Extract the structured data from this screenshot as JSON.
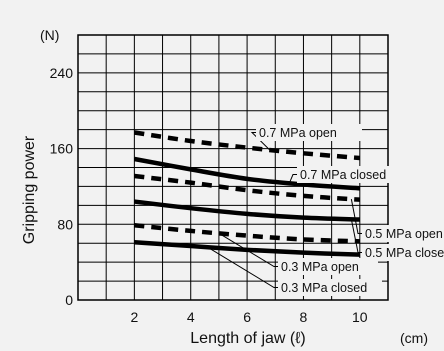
{
  "chart_data": {
    "type": "line",
    "xlabel": "Length of jaw (ℓ)",
    "xunit": "(cm)",
    "ylabel": "Gripping power",
    "yunit": "(N)",
    "xlim": [
      0,
      11
    ],
    "ylim": [
      0,
      280
    ],
    "x_ticks": [
      2,
      4,
      6,
      8,
      10
    ],
    "y_ticks": [
      0,
      80,
      160,
      240
    ],
    "grid": true,
    "legend": "none",
    "series": [
      {
        "name": "0.7 MPa open",
        "x": [
          2,
          4,
          6,
          8,
          10
        ],
        "y": [
          177,
          168,
          161,
          155,
          150
        ],
        "style": "dashed"
      },
      {
        "name": "0.7 MPa closed",
        "x": [
          2,
          4,
          6,
          8,
          10
        ],
        "y": [
          149,
          138,
          128,
          122,
          118
        ],
        "style": "solid"
      },
      {
        "name": "0.5 MPa open",
        "x": [
          2,
          4,
          6,
          8,
          10
        ],
        "y": [
          131,
          124,
          116,
          110,
          106
        ],
        "style": "dashed"
      },
      {
        "name": "0.5 MPa closed",
        "x": [
          2,
          4,
          6,
          8,
          10
        ],
        "y": [
          104,
          97,
          91,
          87,
          85
        ],
        "style": "solid"
      },
      {
        "name": "0.3 MPa open",
        "x": [
          2,
          4,
          6,
          8,
          10
        ],
        "y": [
          79,
          73,
          68,
          64,
          62
        ],
        "style": "dashed"
      },
      {
        "name": "0.3 MPa closed",
        "x": [
          2,
          4,
          6,
          8,
          10
        ],
        "y": [
          61,
          57,
          53,
          50,
          48
        ],
        "style": "solid"
      }
    ]
  }
}
